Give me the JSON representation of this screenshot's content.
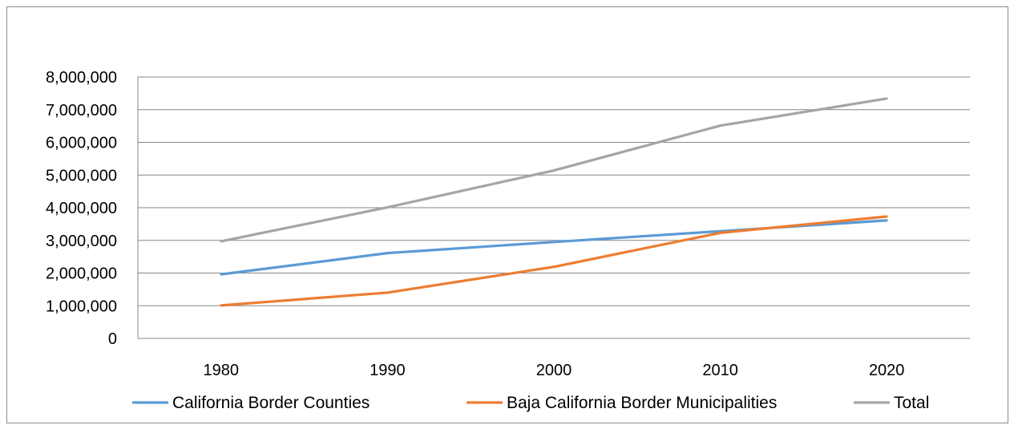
{
  "chart_data": {
    "type": "line",
    "title": "",
    "xlabel": "",
    "ylabel": "",
    "categories": [
      "1980",
      "1990",
      "2000",
      "2010",
      "2020"
    ],
    "ylim": [
      0,
      8000000
    ],
    "y_ticks": [
      0,
      1000000,
      2000000,
      3000000,
      4000000,
      5000000,
      6000000,
      7000000,
      8000000
    ],
    "y_tick_labels": [
      "0",
      "1,000,000",
      "2,000,000",
      "3,000,000",
      "4,000,000",
      "5,000,000",
      "6,000,000",
      "7,000,000",
      "8,000,000"
    ],
    "grid": true,
    "legend_position": "bottom",
    "series": [
      {
        "name": "California Border Counties",
        "color": "#5b9bd5",
        "values": [
          1960000,
          2610000,
          2950000,
          3280000,
          3610000
        ]
      },
      {
        "name": "Baja California Border Municipalities",
        "color": "#ed7d31",
        "values": [
          1010000,
          1400000,
          2190000,
          3230000,
          3730000
        ]
      },
      {
        "name": "Total",
        "color": "#a5a5a5",
        "values": [
          2970000,
          4010000,
          5140000,
          6510000,
          7340000
        ]
      }
    ]
  }
}
